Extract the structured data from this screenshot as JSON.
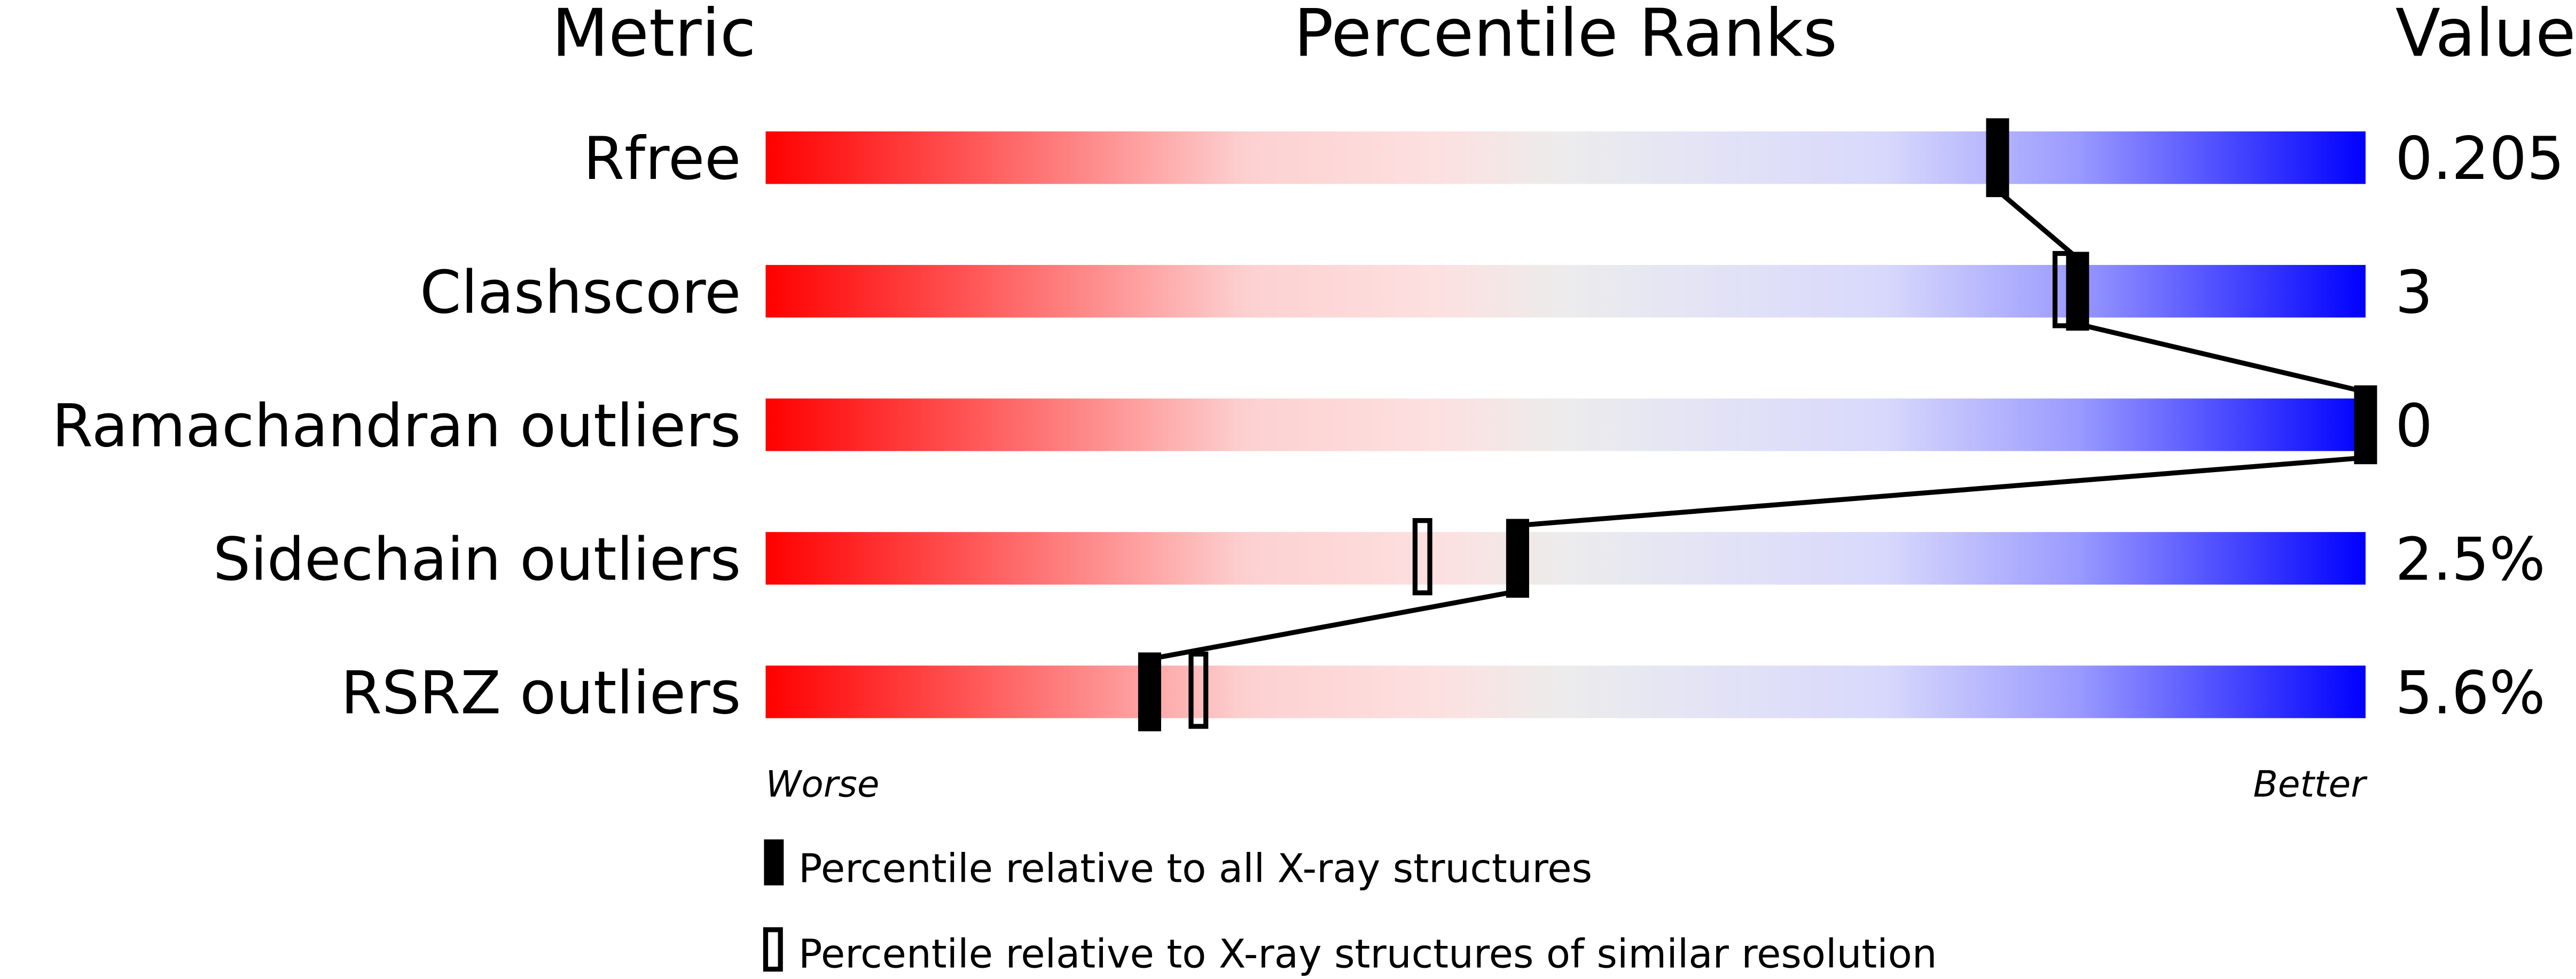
{
  "chart_data": {
    "type": "percentile-slider",
    "headers": {
      "metric": "Metric",
      "ranks": "Percentile Ranks",
      "value": "Value"
    },
    "xlim": [
      0,
      100
    ],
    "rows": [
      {
        "metric": "Rfree",
        "value": "0.205",
        "percentile_all": 77,
        "percentile_similar": null
      },
      {
        "metric": "Clashscore",
        "value": "3",
        "percentile_all": 82,
        "percentile_similar": 81
      },
      {
        "metric": "Ramachandran outliers",
        "value": "0",
        "percentile_all": 100,
        "percentile_similar": null
      },
      {
        "metric": "Sidechain outliers",
        "value": "2.5%",
        "percentile_all": 47,
        "percentile_similar": 41
      },
      {
        "metric": "RSRZ outliers",
        "value": "5.6%",
        "percentile_all": 24,
        "percentile_similar": 27
      }
    ],
    "axis": {
      "worse": "Worse",
      "better": "Better"
    },
    "legend": {
      "all": "Percentile relative to all X-ray structures",
      "similar": "Percentile relative to X-ray structures of similar resolution"
    },
    "colors": {
      "worse": "#ff0000",
      "middle": "#eeeeee",
      "better": "#0000ff",
      "marker": "#000000"
    }
  }
}
